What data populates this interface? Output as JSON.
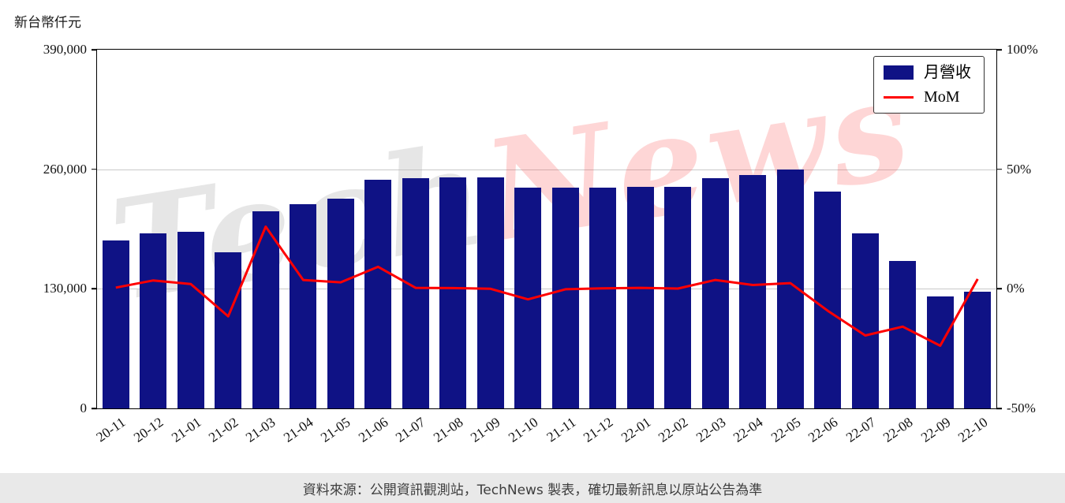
{
  "title": "新台幣仟元",
  "watermark": {
    "part1": "Tech",
    "part2": "News"
  },
  "footer": {
    "text": "資料來源：公開資訊觀測站，TechNews 製表，確切最新訊息以原站公告為準"
  },
  "chart_data": {
    "type": "bar",
    "title": "新台幣仟元",
    "categories": [
      "20-11",
      "20-12",
      "21-01",
      "21-02",
      "21-03",
      "21-04",
      "21-05",
      "21-06",
      "21-07",
      "21-08",
      "21-09",
      "21-10",
      "21-11",
      "21-12",
      "22-01",
      "22-02",
      "22-03",
      "22-04",
      "22-05",
      "22-06",
      "22-07",
      "22-08",
      "22-09",
      "22-10"
    ],
    "series": [
      {
        "name": "月營收",
        "type": "bar",
        "axis": "left",
        "color": "#0f1285",
        "values": [
          183000,
          190000,
          192000,
          170000,
          214000,
          222000,
          228000,
          249000,
          250000,
          251000,
          251000,
          240000,
          240000,
          240000,
          241000,
          241000,
          250000,
          254000,
          260000,
          236000,
          190000,
          160000,
          122000,
          127000
        ]
      },
      {
        "name": "MoM",
        "type": "line",
        "axis": "right",
        "color": "#ff0000",
        "values": [
          0.5,
          3.5,
          2.0,
          -11.5,
          26.0,
          3.7,
          2.7,
          9.2,
          0.4,
          0.3,
          0.0,
          -4.4,
          -0.2,
          0.2,
          0.4,
          0.1,
          3.7,
          1.6,
          2.4,
          -9.2,
          -19.5,
          -15.8,
          -23.8,
          4.1
        ]
      }
    ],
    "left_axis": {
      "label": "新台幣仟元",
      "min": 0,
      "max": 390000,
      "ticks": [
        {
          "value": 390000,
          "label": "390,000"
        },
        {
          "value": 260000,
          "label": "260,000"
        },
        {
          "value": 130000,
          "label": "130,000"
        },
        {
          "value": 0,
          "label": "0"
        }
      ]
    },
    "right_axis": {
      "min": -50,
      "max": 100,
      "ticks": [
        {
          "value": 100,
          "label": "100%"
        },
        {
          "value": 50,
          "label": "50%"
        },
        {
          "value": 0,
          "label": "0%"
        },
        {
          "value": -50,
          "label": "-50%"
        }
      ]
    },
    "legend": {
      "position": "top-right",
      "entries": [
        "月營收",
        "MoM"
      ]
    },
    "grid": "horizontal"
  }
}
